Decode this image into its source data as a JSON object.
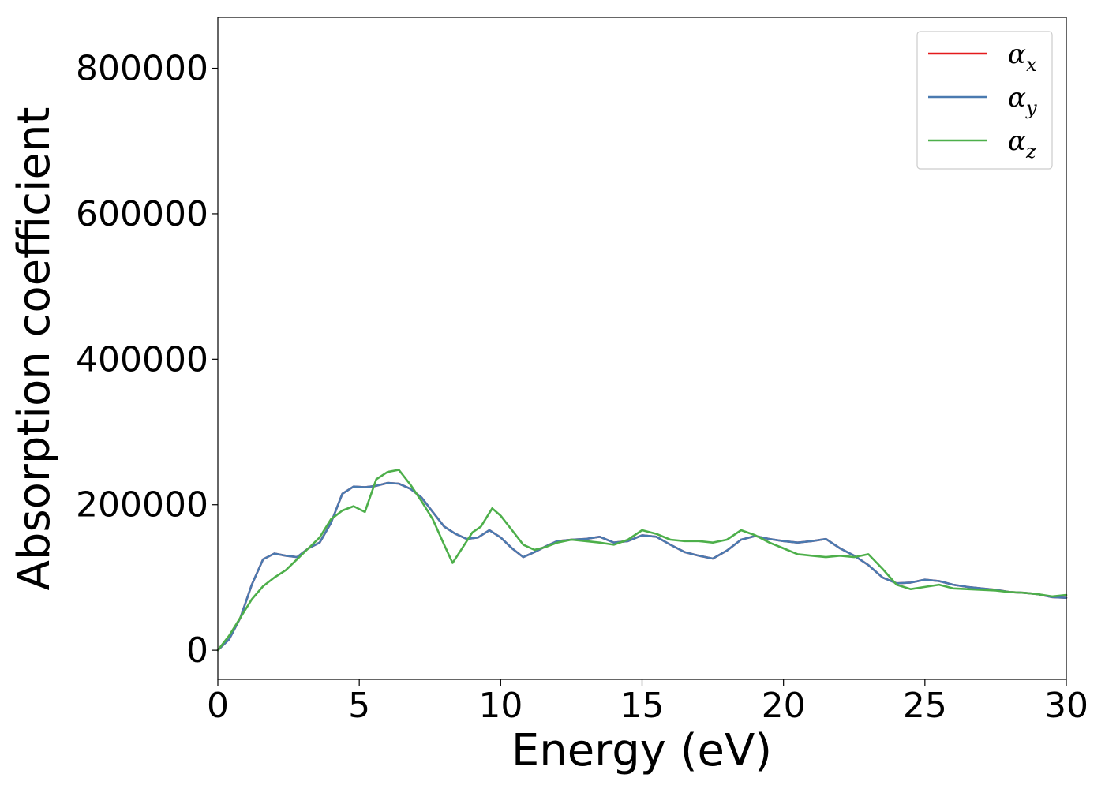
{
  "chart_data": {
    "type": "line",
    "title": "",
    "xlabel": "Energy (eV)",
    "ylabel": "Absorption coefficient",
    "xlim": [
      0,
      30
    ],
    "ylim": [
      -40000,
      870000
    ],
    "xticks": [
      0,
      5,
      10,
      15,
      20,
      25,
      30
    ],
    "xtick_labels": [
      "0",
      "5",
      "10",
      "15",
      "20",
      "25",
      "30"
    ],
    "yticks": [
      0,
      200000,
      400000,
      600000,
      800000
    ],
    "ytick_labels": [
      "0",
      "200000",
      "400000",
      "600000",
      "800000"
    ],
    "grid": false,
    "legend_position": "top-right",
    "series": [
      {
        "name": "αx",
        "name_base": "α",
        "name_sub": "x",
        "color": "#e41a1c",
        "x": [
          0,
          0.4,
          0.8,
          1.2,
          1.6,
          2.0,
          2.4,
          2.8,
          3.2,
          3.6,
          4.0,
          4.4,
          4.8,
          5.2,
          5.6,
          6.0,
          6.4,
          6.8,
          7.2,
          7.6,
          8.0,
          8.4,
          8.8,
          9.2,
          9.6,
          10.0,
          10.4,
          10.8,
          11.2,
          11.6,
          12.0,
          12.5,
          13.0,
          13.5,
          14.0,
          14.5,
          15.0,
          15.5,
          16.0,
          16.5,
          17.0,
          17.5,
          18.0,
          18.5,
          19.0,
          19.5,
          20.0,
          20.5,
          21.0,
          21.5,
          22.0,
          22.5,
          23.0,
          23.5,
          24.0,
          24.5,
          25.0,
          25.5,
          26.0,
          26.5,
          27.0,
          27.5,
          28.0,
          28.5,
          29.0,
          29.5,
          30.0
        ],
        "y": [
          0,
          15000,
          45000,
          90000,
          125000,
          133000,
          130000,
          128000,
          140000,
          148000,
          175000,
          215000,
          225000,
          224000,
          226000,
          230000,
          229000,
          222000,
          210000,
          190000,
          170000,
          160000,
          153000,
          155000,
          165000,
          155000,
          140000,
          128000,
          135000,
          143000,
          150000,
          152000,
          153000,
          156000,
          148000,
          150000,
          158000,
          156000,
          145000,
          135000,
          130000,
          126000,
          137000,
          152000,
          157000,
          153000,
          150000,
          148000,
          150000,
          153000,
          140000,
          130000,
          117000,
          100000,
          92000,
          93000,
          97000,
          95000,
          90000,
          87000,
          85000,
          83000,
          80000,
          79000,
          77000,
          73000,
          72000
        ]
      },
      {
        "name": "αy",
        "name_base": "α",
        "name_sub": "y",
        "color": "#4a7ab0",
        "x": [
          0,
          0.4,
          0.8,
          1.2,
          1.6,
          2.0,
          2.4,
          2.8,
          3.2,
          3.6,
          4.0,
          4.4,
          4.8,
          5.2,
          5.6,
          6.0,
          6.4,
          6.8,
          7.2,
          7.6,
          8.0,
          8.4,
          8.8,
          9.2,
          9.6,
          10.0,
          10.4,
          10.8,
          11.2,
          11.6,
          12.0,
          12.5,
          13.0,
          13.5,
          14.0,
          14.5,
          15.0,
          15.5,
          16.0,
          16.5,
          17.0,
          17.5,
          18.0,
          18.5,
          19.0,
          19.5,
          20.0,
          20.5,
          21.0,
          21.5,
          22.0,
          22.5,
          23.0,
          23.5,
          24.0,
          24.5,
          25.0,
          25.5,
          26.0,
          26.5,
          27.0,
          27.5,
          28.0,
          28.5,
          29.0,
          29.5,
          30.0
        ],
        "y": [
          0,
          15000,
          45000,
          90000,
          125000,
          133000,
          130000,
          128000,
          140000,
          148000,
          175000,
          215000,
          225000,
          224000,
          226000,
          230000,
          229000,
          222000,
          210000,
          190000,
          170000,
          160000,
          153000,
          155000,
          165000,
          155000,
          140000,
          128000,
          135000,
          143000,
          150000,
          152000,
          153000,
          156000,
          148000,
          150000,
          158000,
          156000,
          145000,
          135000,
          130000,
          126000,
          137000,
          152000,
          157000,
          153000,
          150000,
          148000,
          150000,
          153000,
          140000,
          130000,
          117000,
          100000,
          92000,
          93000,
          97000,
          95000,
          90000,
          87000,
          85000,
          83000,
          80000,
          79000,
          77000,
          73000,
          72000
        ]
      },
      {
        "name": "αz",
        "name_base": "α",
        "name_sub": "z",
        "color": "#4daf4a",
        "x": [
          0,
          0.4,
          0.8,
          1.2,
          1.6,
          2.0,
          2.4,
          2.8,
          3.2,
          3.6,
          4.0,
          4.4,
          4.8,
          5.2,
          5.6,
          6.0,
          6.4,
          6.8,
          7.2,
          7.6,
          8.0,
          8.3,
          8.6,
          9.0,
          9.3,
          9.7,
          10.0,
          10.4,
          10.8,
          11.2,
          11.6,
          12.0,
          12.5,
          13.0,
          13.5,
          14.0,
          14.5,
          15.0,
          15.5,
          16.0,
          16.5,
          17.0,
          17.5,
          18.0,
          18.5,
          19.0,
          19.5,
          20.0,
          20.5,
          21.0,
          21.5,
          22.0,
          22.5,
          23.0,
          23.5,
          24.0,
          24.5,
          25.0,
          25.5,
          26.0,
          26.5,
          27.0,
          27.5,
          28.0,
          28.5,
          29.0,
          29.5,
          30.0
        ],
        "y": [
          0,
          20000,
          45000,
          70000,
          88000,
          100000,
          110000,
          125000,
          140000,
          155000,
          180000,
          192000,
          198000,
          190000,
          235000,
          245000,
          248000,
          228000,
          205000,
          180000,
          145000,
          120000,
          138000,
          162000,
          170000,
          195000,
          185000,
          165000,
          145000,
          138000,
          142000,
          148000,
          152000,
          150000,
          148000,
          145000,
          152000,
          165000,
          160000,
          152000,
          150000,
          150000,
          148000,
          152000,
          165000,
          158000,
          148000,
          140000,
          132000,
          130000,
          128000,
          130000,
          128000,
          132000,
          112000,
          90000,
          84000,
          87000,
          90000,
          85000,
          84000,
          83000,
          82000,
          80000,
          79000,
          77000,
          74000,
          76000
        ]
      }
    ]
  }
}
